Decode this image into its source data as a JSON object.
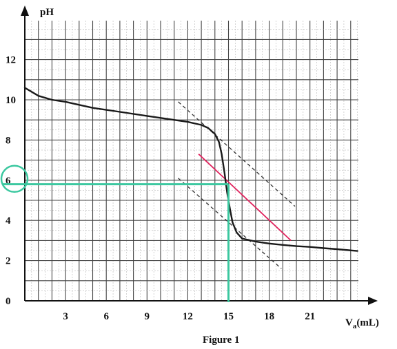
{
  "chart_data": {
    "type": "line",
    "caption": "Figure 1",
    "ylabel": "pH",
    "xlabel_main": "V",
    "xlabel_sub": "a",
    "xlabel_unit": "(mL)",
    "xlim": [
      0,
      24.5
    ],
    "ylim": [
      0,
      14
    ],
    "x_ticks": [
      3,
      6,
      9,
      12,
      15,
      18,
      21
    ],
    "y_ticks": [
      0,
      2,
      4,
      6,
      8,
      10,
      12
    ],
    "grid": true,
    "series": [
      {
        "x": [
          0,
          1,
          2,
          3,
          5,
          7,
          9,
          10,
          11,
          12,
          13,
          13.5,
          14,
          14.3,
          14.5,
          14.7,
          14.9,
          15.0,
          15.1,
          15.3,
          15.6,
          16,
          17,
          18,
          19,
          20,
          21,
          22,
          23,
          24.5
        ],
        "y": [
          10.6,
          10.2,
          10.0,
          9.9,
          9.6,
          9.4,
          9.2,
          9.1,
          9.0,
          8.9,
          8.75,
          8.6,
          8.3,
          7.9,
          7.3,
          6.4,
          5.4,
          5.0,
          4.6,
          3.9,
          3.4,
          3.1,
          2.95,
          2.85,
          2.78,
          2.72,
          2.68,
          2.62,
          2.57,
          2.48
        ]
      }
    ],
    "tangents": [
      {
        "x": [
          11.3,
          19.9
        ],
        "y": [
          9.9,
          4.7
        ],
        "color": "#333333",
        "style": "dashed"
      },
      {
        "x": [
          11.3,
          18.9
        ],
        "y": [
          6.1,
          1.6
        ],
        "color": "#333333",
        "style": "dashed"
      },
      {
        "x": [
          12.8,
          19.6
        ],
        "y": [
          7.3,
          3.0
        ],
        "color": "#e0245e",
        "style": "solid"
      }
    ],
    "highlight": {
      "x": 15,
      "y": 5.8,
      "label": "6",
      "color": "#3cc8a0"
    }
  }
}
